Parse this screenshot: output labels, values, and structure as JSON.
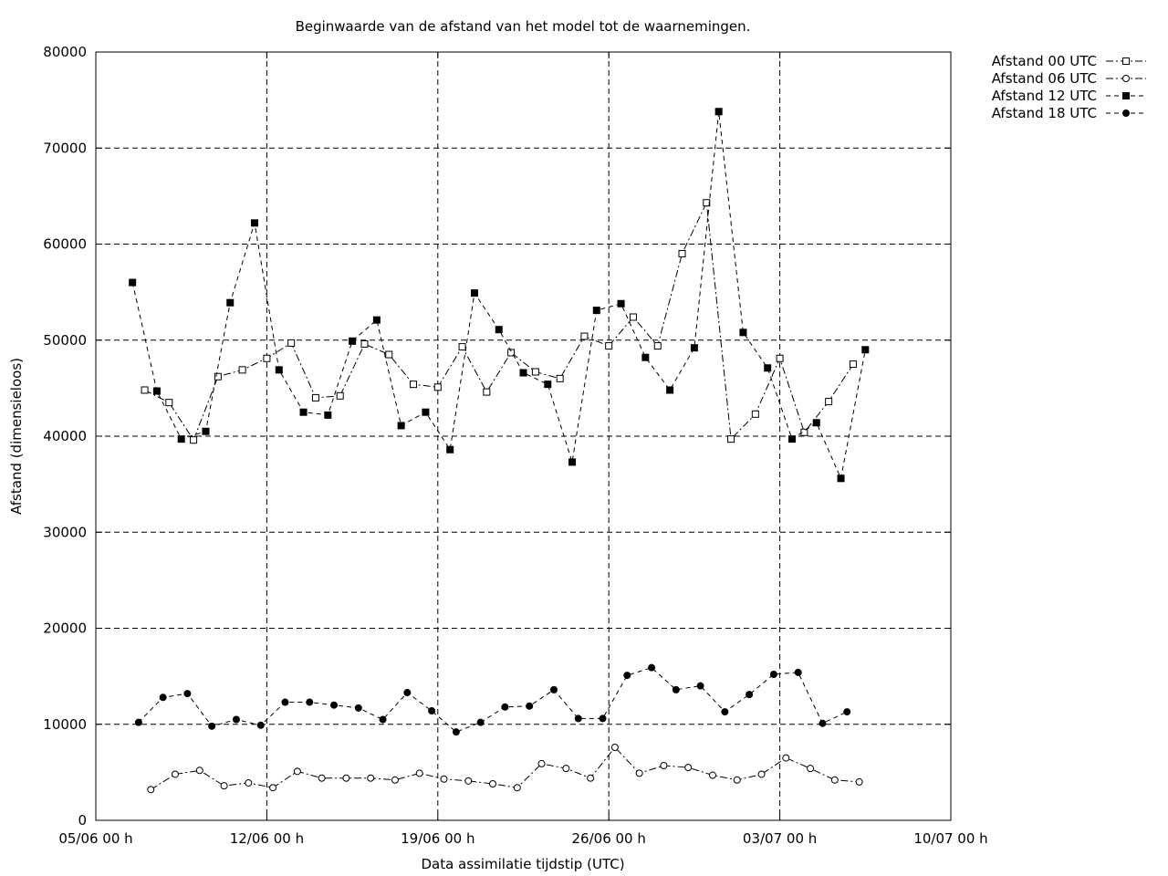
{
  "chart_data": {
    "type": "line",
    "title": "Beginwaarde van de afstand van het model tot de waarnemingen.",
    "xlabel": "Data assimilatie tijdstip (UTC)",
    "ylabel": "Afstand (dimensieloos)",
    "xlim": [
      "2005-06-05 00:00",
      "2005-07-10 00:00"
    ],
    "ylim": [
      0,
      80000
    ],
    "x_ticks": [
      {
        "value": "2005-06-05 00:00",
        "label": "05/06 00 h"
      },
      {
        "value": "2005-06-12 00:00",
        "label": "12/06 00 h"
      },
      {
        "value": "2005-06-19 00:00",
        "label": "19/06 00 h"
      },
      {
        "value": "2005-06-26 00:00",
        "label": "26/06 00 h"
      },
      {
        "value": "2005-07-03 00:00",
        "label": "03/07 00 h"
      },
      {
        "value": "2005-07-10 00:00",
        "label": "10/07 00 h"
      }
    ],
    "y_ticks": [
      0,
      10000,
      20000,
      30000,
      40000,
      50000,
      60000,
      70000,
      80000
    ],
    "grid": true,
    "legend_position": "outside-top-right",
    "series": [
      {
        "name": "Afstand 00 UTC",
        "marker": "open-square",
        "dash": "dash-dot",
        "points": [
          [
            "2005-06-07 00:00",
            44800
          ],
          [
            "2005-06-08 00:00",
            43500
          ],
          [
            "2005-06-09 00:00",
            39600
          ],
          [
            "2005-06-10 00:00",
            46200
          ],
          [
            "2005-06-11 00:00",
            46900
          ],
          [
            "2005-06-12 00:00",
            48100
          ],
          [
            "2005-06-13 00:00",
            49700
          ],
          [
            "2005-06-14 00:00",
            44000
          ],
          [
            "2005-06-15 00:00",
            44200
          ],
          [
            "2005-06-16 00:00",
            49600
          ],
          [
            "2005-06-17 00:00",
            48500
          ],
          [
            "2005-06-18 00:00",
            45400
          ],
          [
            "2005-06-19 00:00",
            45100
          ],
          [
            "2005-06-20 00:00",
            49300
          ],
          [
            "2005-06-21 00:00",
            44600
          ],
          [
            "2005-06-22 00:00",
            48700
          ],
          [
            "2005-06-23 00:00",
            46700
          ],
          [
            "2005-06-24 00:00",
            46000
          ],
          [
            "2005-06-25 00:00",
            50400
          ],
          [
            "2005-06-26 00:00",
            49400
          ],
          [
            "2005-06-27 00:00",
            52400
          ],
          [
            "2005-06-28 00:00",
            49400
          ],
          [
            "2005-06-29 00:00",
            59000
          ],
          [
            "2005-06-30 00:00",
            64300
          ],
          [
            "2005-07-01 00:00",
            39700
          ],
          [
            "2005-07-02 00:00",
            42300
          ],
          [
            "2005-07-03 00:00",
            48100
          ],
          [
            "2005-07-04 00:00",
            40400
          ],
          [
            "2005-07-05 00:00",
            43600
          ],
          [
            "2005-07-06 00:00",
            47500
          ]
        ]
      },
      {
        "name": "Afstand 06 UTC",
        "marker": "open-circle",
        "dash": "dash-dot",
        "points": [
          [
            "2005-06-07 06:00",
            3200
          ],
          [
            "2005-06-08 06:00",
            4800
          ],
          [
            "2005-06-09 06:00",
            5200
          ],
          [
            "2005-06-10 06:00",
            3600
          ],
          [
            "2005-06-11 06:00",
            3900
          ],
          [
            "2005-06-12 06:00",
            3400
          ],
          [
            "2005-06-13 06:00",
            5100
          ],
          [
            "2005-06-14 06:00",
            4400
          ],
          [
            "2005-06-15 06:00",
            4400
          ],
          [
            "2005-06-16 06:00",
            4400
          ],
          [
            "2005-06-17 06:00",
            4200
          ],
          [
            "2005-06-18 06:00",
            4900
          ],
          [
            "2005-06-19 06:00",
            4300
          ],
          [
            "2005-06-20 06:00",
            4100
          ],
          [
            "2005-06-21 06:00",
            3800
          ],
          [
            "2005-06-22 06:00",
            3400
          ],
          [
            "2005-06-23 06:00",
            5900
          ],
          [
            "2005-06-24 06:00",
            5400
          ],
          [
            "2005-06-25 06:00",
            4400
          ],
          [
            "2005-06-26 06:00",
            7600
          ],
          [
            "2005-06-27 06:00",
            4900
          ],
          [
            "2005-06-28 06:00",
            5700
          ],
          [
            "2005-06-29 06:00",
            5500
          ],
          [
            "2005-06-30 06:00",
            4700
          ],
          [
            "2005-07-01 06:00",
            4200
          ],
          [
            "2005-07-02 06:00",
            4800
          ],
          [
            "2005-07-03 06:00",
            6500
          ],
          [
            "2005-07-04 06:00",
            5400
          ],
          [
            "2005-07-05 06:00",
            4200
          ],
          [
            "2005-07-06 06:00",
            4000
          ]
        ]
      },
      {
        "name": "Afstand 12 UTC",
        "marker": "filled-square",
        "dash": "dashed",
        "points": [
          [
            "2005-06-06 12:00",
            56000
          ],
          [
            "2005-06-07 12:00",
            44700
          ],
          [
            "2005-06-08 12:00",
            39700
          ],
          [
            "2005-06-09 12:00",
            40500
          ],
          [
            "2005-06-10 12:00",
            53900
          ],
          [
            "2005-06-11 12:00",
            62200
          ],
          [
            "2005-06-12 12:00",
            46900
          ],
          [
            "2005-06-13 12:00",
            42500
          ],
          [
            "2005-06-14 12:00",
            42200
          ],
          [
            "2005-06-15 12:00",
            49900
          ],
          [
            "2005-06-16 12:00",
            52100
          ],
          [
            "2005-06-17 12:00",
            41100
          ],
          [
            "2005-06-18 12:00",
            42500
          ],
          [
            "2005-06-19 12:00",
            38600
          ],
          [
            "2005-06-20 12:00",
            54900
          ],
          [
            "2005-06-21 12:00",
            51100
          ],
          [
            "2005-06-22 12:00",
            46600
          ],
          [
            "2005-06-23 12:00",
            45400
          ],
          [
            "2005-06-24 12:00",
            37300
          ],
          [
            "2005-06-25 12:00",
            53100
          ],
          [
            "2005-06-26 12:00",
            53800
          ],
          [
            "2005-06-27 12:00",
            48200
          ],
          [
            "2005-06-28 12:00",
            44800
          ],
          [
            "2005-06-29 12:00",
            49200
          ],
          [
            "2005-06-30 12:00",
            73800
          ],
          [
            "2005-07-01 12:00",
            50800
          ],
          [
            "2005-07-02 12:00",
            47100
          ],
          [
            "2005-07-03 12:00",
            39700
          ],
          [
            "2005-07-04 12:00",
            41400
          ],
          [
            "2005-07-05 12:00",
            35600
          ],
          [
            "2005-07-06 12:00",
            49000
          ]
        ]
      },
      {
        "name": "Afstand 18 UTC",
        "marker": "filled-circle",
        "dash": "dashed",
        "points": [
          [
            "2005-06-06 18:00",
            10200
          ],
          [
            "2005-06-07 18:00",
            12800
          ],
          [
            "2005-06-08 18:00",
            13200
          ],
          [
            "2005-06-09 18:00",
            9800
          ],
          [
            "2005-06-10 18:00",
            10500
          ],
          [
            "2005-06-11 18:00",
            9900
          ],
          [
            "2005-06-12 18:00",
            12300
          ],
          [
            "2005-06-13 18:00",
            12300
          ],
          [
            "2005-06-14 18:00",
            12000
          ],
          [
            "2005-06-15 18:00",
            11700
          ],
          [
            "2005-06-16 18:00",
            10500
          ],
          [
            "2005-06-17 18:00",
            13300
          ],
          [
            "2005-06-18 18:00",
            11400
          ],
          [
            "2005-06-19 18:00",
            9200
          ],
          [
            "2005-06-20 18:00",
            10200
          ],
          [
            "2005-06-21 18:00",
            11800
          ],
          [
            "2005-06-22 18:00",
            11900
          ],
          [
            "2005-06-23 18:00",
            13600
          ],
          [
            "2005-06-24 18:00",
            10600
          ],
          [
            "2005-06-25 18:00",
            10600
          ],
          [
            "2005-06-26 18:00",
            15100
          ],
          [
            "2005-06-27 18:00",
            15900
          ],
          [
            "2005-06-28 18:00",
            13600
          ],
          [
            "2005-06-29 18:00",
            14000
          ],
          [
            "2005-06-30 18:00",
            11300
          ],
          [
            "2005-07-01 18:00",
            13100
          ],
          [
            "2005-07-02 18:00",
            15200
          ],
          [
            "2005-07-03 18:00",
            15400
          ],
          [
            "2005-07-04 18:00",
            10100
          ],
          [
            "2005-07-05 18:00",
            11300
          ]
        ]
      }
    ]
  }
}
